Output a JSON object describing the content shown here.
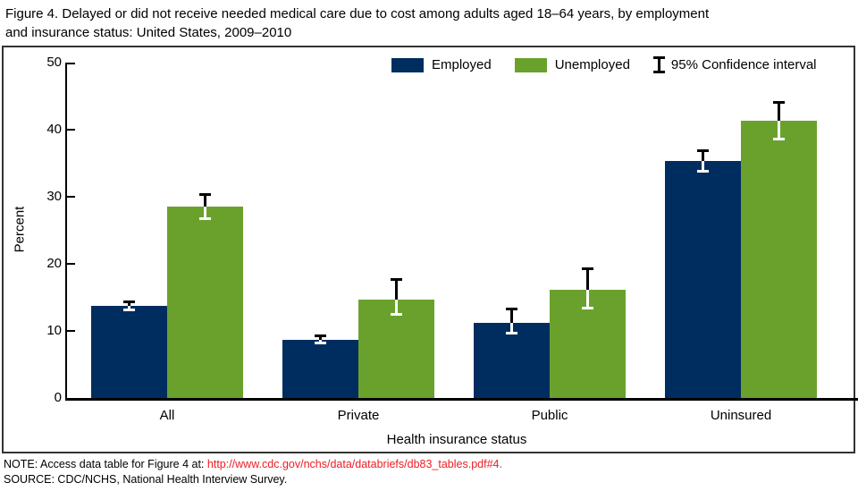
{
  "title": {
    "line1": "Figure 4. Delayed or did not receive needed medical care due to cost among adults aged 18–64 years, by employment",
    "line2": "and insurance status: United States, 2009–2010"
  },
  "legend": {
    "employed_label": "Employed",
    "unemployed_label": "Unemployed",
    "ci_label": "95% Confidence interval"
  },
  "chart_data": {
    "type": "bar",
    "title": "Delayed or did not receive needed medical care due to cost among adults aged 18-64 years, by employment and insurance status: United States, 2009-2010",
    "categories": [
      "All",
      "Private",
      "Public",
      "Uninsured"
    ],
    "series": [
      {
        "name": "Employed",
        "color": "#002d5f",
        "values": [
          13.7,
          8.7,
          11.2,
          35.3
        ],
        "ci_low": [
          13.1,
          8.2,
          9.6,
          33.7
        ],
        "ci_high": [
          14.4,
          9.3,
          13.3,
          36.9
        ]
      },
      {
        "name": "Unemployed",
        "color": "#6aa12d",
        "values": [
          28.5,
          14.7,
          16.1,
          41.3
        ],
        "ci_low": [
          26.7,
          12.4,
          13.4,
          38.5
        ],
        "ci_high": [
          30.4,
          17.8,
          19.3,
          44.2
        ]
      }
    ],
    "xlabel": "Health insurance status",
    "ylabel": "Percent",
    "ylim": [
      0,
      50
    ],
    "yticks": [
      0,
      10,
      20,
      30,
      40,
      50
    ],
    "grid": false,
    "error_bars": true,
    "legend_position": "top-inside"
  },
  "footer": {
    "note_prefix": "NOTE: Access data table for Figure 4 at: ",
    "note_link": "http://www.cdc.gov/nchs/data/databriefs/db83_tables.pdf#4.",
    "source": "SOURCE: CDC/NCHS, National Health Interview Survey."
  },
  "colors": {
    "employed_bar": "#002d5f",
    "unemployed_bar": "#6aa12d",
    "axis": "#000000",
    "link_red": "#ed1c24",
    "figure_border": "#333333"
  }
}
